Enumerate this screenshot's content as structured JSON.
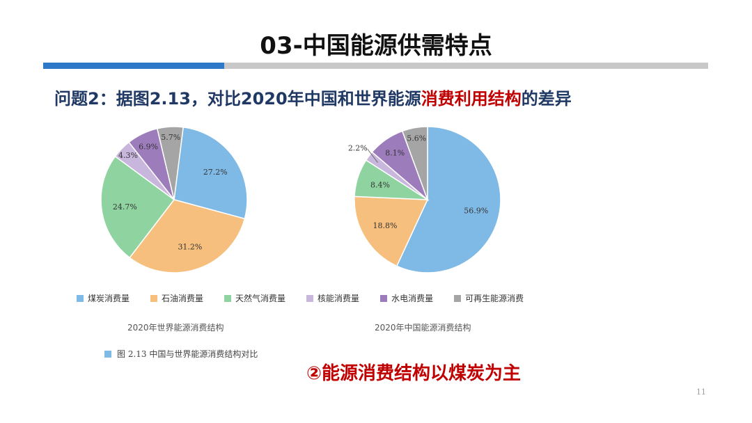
{
  "slide": {
    "title": "03-中国能源供需特点",
    "question_prefix": "问题2：据图2.13，对比2020年中国和世界能源",
    "question_highlight": "消费利用结构",
    "question_suffix": "的差异",
    "conclusion": "②能源消费结构以煤炭为主",
    "figure_note": "图 2.13   中国与世界能源消费结构对比",
    "page_number": "11"
  },
  "colors": {
    "coal": "#7fb9e5",
    "oil": "#f6bf7d",
    "gas": "#8fd3a0",
    "nuclear": "#c9b6dc",
    "hydro": "#9d7cbc",
    "renewable": "#a5a5a5",
    "accent": "#2d78c8",
    "highlight": "#c00000"
  },
  "chart_data": [
    {
      "type": "pie",
      "title": "2020年世界能源消费结构",
      "categories": [
        "煤炭消费量",
        "石油消费量",
        "天然气消费量",
        "核能消费量",
        "水电消费量",
        "可再生能源消费"
      ],
      "values": [
        27.2,
        31.2,
        24.7,
        4.3,
        6.9,
        5.7
      ],
      "labels": [
        "27.2%",
        "31.2%",
        "24.7%",
        "4.3%",
        "6.9%",
        "5.7%"
      ],
      "legend_position": "bottom"
    },
    {
      "type": "pie",
      "title": "2020年中国能源消费结构",
      "categories": [
        "煤炭消费量",
        "石油消费量",
        "天然气消费量",
        "核能消费量",
        "水电消费量",
        "可再生能源消费"
      ],
      "values": [
        56.9,
        18.8,
        8.4,
        2.2,
        8.1,
        5.6
      ],
      "labels": [
        "56.9%",
        "18.8%",
        "8.4%",
        "2.2%",
        "8.1%",
        "5.6%"
      ],
      "legend_position": "bottom"
    }
  ],
  "legend": [
    {
      "label": "煤炭消费量",
      "color_key": "coal"
    },
    {
      "label": "石油消费量",
      "color_key": "oil"
    },
    {
      "label": "天然气消费量",
      "color_key": "gas"
    },
    {
      "label": "核能消费量",
      "color_key": "nuclear"
    },
    {
      "label": "水电消费量",
      "color_key": "hydro"
    },
    {
      "label": "可再生能源消费",
      "color_key": "renewable"
    }
  ]
}
